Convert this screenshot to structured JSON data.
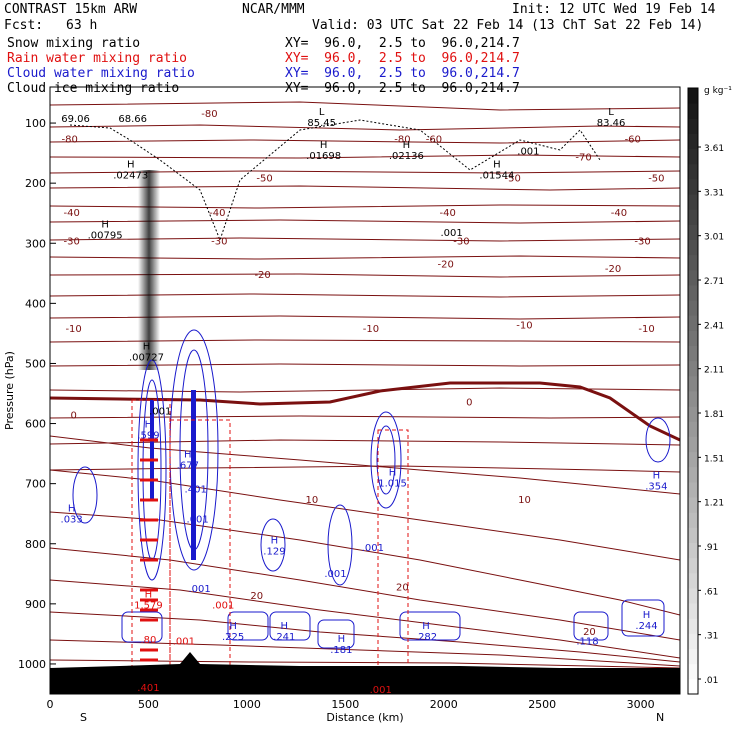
{
  "header": {
    "model": "CONTRAST 15km ARW",
    "org": "NCAR/MMM",
    "init": "Init: 12 UTC Wed 19 Feb 14",
    "fcst_label": "Fcst:",
    "fcst_value": "63 h",
    "valid": "Valid: 03 UTC Sat 22 Feb 14 (13 ChT Sat 22 Feb 14)",
    "fields": [
      {
        "name": "Snow mixing ratio",
        "color": "#000000",
        "xy": "XY=  96.0,  2.5 to  96.0,214.7"
      },
      {
        "name": "Rain water mixing ratio",
        "color": "#e01010",
        "xy": "XY=  96.0,  2.5 to  96.0,214.7"
      },
      {
        "name": "Cloud water mixing ratio",
        "color": "#1a1acc",
        "xy": "XY=  96.0,  2.5 to  96.0,214.7"
      },
      {
        "name": "Cloud ice mixing ratio",
        "color": "#000000",
        "xy": "XY=  96.0,  2.5 to  96.0,214.7"
      }
    ]
  },
  "chart_data": {
    "type": "cross-section",
    "xlabel": "Distance (km)",
    "ylabel": "Pressure (hPa)",
    "xlim": [
      0,
      3200
    ],
    "ylim": [
      1050,
      40
    ],
    "x_ticks": [
      0,
      500,
      1000,
      1500,
      2000,
      2500,
      3000
    ],
    "y_ticks": [
      100,
      200,
      300,
      400,
      500,
      600,
      700,
      800,
      900,
      1000
    ],
    "x_end_labels": {
      "left": "S",
      "right": "N"
    },
    "colorbar": {
      "unit": "g kg⁻¹",
      "ticks": [
        3.61,
        3.31,
        3.01,
        2.71,
        2.41,
        2.11,
        1.81,
        1.51,
        1.21,
        0.91,
        0.61,
        0.31,
        0.01
      ],
      "tick_labels": [
        "3.61",
        "3.31",
        "3.01",
        "2.71",
        "2.41",
        "2.11",
        "1.81",
        "1.51",
        "1.21",
        ".91",
        ".61",
        ".31",
        ".01"
      ]
    },
    "temperature_contours": {
      "color": "#7a1010",
      "labels": [
        {
          "x": 100,
          "p": 127,
          "t": "-80"
        },
        {
          "x": 810,
          "p": 85,
          "t": "-80"
        },
        {
          "x": 1790,
          "p": 127,
          "t": "-80"
        },
        {
          "x": 1950,
          "p": 127,
          "t": "-60"
        },
        {
          "x": 2960,
          "p": 127,
          "t": "-60"
        },
        {
          "x": 2710,
          "p": 157,
          "t": "-70"
        },
        {
          "x": 1090,
          "p": 192,
          "t": "-50"
        },
        {
          "x": 2350,
          "p": 192,
          "t": "-50"
        },
        {
          "x": 3080,
          "p": 192,
          "t": "-50"
        },
        {
          "x": 110,
          "p": 250,
          "t": "-40"
        },
        {
          "x": 850,
          "p": 250,
          "t": "-40"
        },
        {
          "x": 2020,
          "p": 250,
          "t": "-40"
        },
        {
          "x": 2890,
          "p": 250,
          "t": "-40"
        },
        {
          "x": 110,
          "p": 297,
          "t": "-30"
        },
        {
          "x": 860,
          "p": 297,
          "t": "-30"
        },
        {
          "x": 2090,
          "p": 297,
          "t": "-30"
        },
        {
          "x": 3010,
          "p": 297,
          "t": "-30"
        },
        {
          "x": 1080,
          "p": 353,
          "t": "-20"
        },
        {
          "x": 2010,
          "p": 335,
          "t": "-20"
        },
        {
          "x": 2860,
          "p": 343,
          "t": "-20"
        },
        {
          "x": 120,
          "p": 443,
          "t": "-10"
        },
        {
          "x": 1630,
          "p": 443,
          "t": "-10"
        },
        {
          "x": 2410,
          "p": 437,
          "t": "-10"
        },
        {
          "x": 3030,
          "p": 443,
          "t": "-10"
        },
        {
          "x": 120,
          "p": 587,
          "t": "0"
        },
        {
          "x": 2130,
          "p": 565,
          "t": "0"
        },
        {
          "x": 1330,
          "p": 727,
          "t": "10"
        },
        {
          "x": 2410,
          "p": 727,
          "t": "10"
        },
        {
          "x": 1790,
          "p": 873,
          "t": "20"
        },
        {
          "x": 1050,
          "p": 887,
          "t": "20"
        },
        {
          "x": 2740,
          "p": 947,
          "t": "20"
        }
      ]
    },
    "max_min_labels": [
      {
        "x": 130,
        "p": 93,
        "sym": "",
        "val": "69.06",
        "color": "black"
      },
      {
        "x": 420,
        "p": 93,
        "sym": "",
        "val": "68.66",
        "color": "black"
      },
      {
        "x": 1380,
        "p": 100,
        "sym": "L",
        "val": "85.45",
        "color": "black"
      },
      {
        "x": 2850,
        "p": 100,
        "sym": "L",
        "val": "83.46",
        "color": "black"
      },
      {
        "x": 1390,
        "p": 155,
        "sym": "H",
        "val": ".01698",
        "color": "black"
      },
      {
        "x": 1810,
        "p": 155,
        "sym": "H",
        "val": ".02136",
        "color": "black"
      },
      {
        "x": 2430,
        "p": 147,
        "sym": "",
        "val": ".001",
        "color": "black"
      },
      {
        "x": 410,
        "p": 187,
        "sym": "H",
        "val": ".02473",
        "color": "black"
      },
      {
        "x": 2270,
        "p": 187,
        "sym": "H",
        "val": ".01544",
        "color": "black"
      },
      {
        "x": 280,
        "p": 287,
        "sym": "H",
        "val": ".00795",
        "color": "black"
      },
      {
        "x": 2040,
        "p": 283,
        "sym": "",
        "val": ".001",
        "color": "black"
      },
      {
        "x": 490,
        "p": 490,
        "sym": "H",
        "val": ".00727",
        "color": "black"
      },
      {
        "x": 560,
        "p": 580,
        "sym": "",
        "val": ".001",
        "color": "black"
      },
      {
        "x": 500,
        "p": 620,
        "sym": "H",
        "val": ".599",
        "color": "blue"
      },
      {
        "x": 700,
        "p": 670,
        "sym": "H",
        "val": ".677",
        "color": "blue"
      },
      {
        "x": 740,
        "p": 710,
        "sym": "",
        "val": ".401",
        "color": "blue"
      },
      {
        "x": 750,
        "p": 760,
        "sym": "",
        "val": ".001",
        "color": "blue"
      },
      {
        "x": 1740,
        "p": 700,
        "sym": "H",
        "val": "1.015",
        "color": "blue"
      },
      {
        "x": 3080,
        "p": 705,
        "sym": "H",
        "val": ".354",
        "color": "blue"
      },
      {
        "x": 110,
        "p": 760,
        "sym": "H",
        "val": ".033",
        "color": "blue"
      },
      {
        "x": 1140,
        "p": 813,
        "sym": "H",
        "val": ".129",
        "color": "blue"
      },
      {
        "x": 1640,
        "p": 807,
        "sym": "",
        "val": ".001",
        "color": "blue"
      },
      {
        "x": 1450,
        "p": 850,
        "sym": "",
        "val": ".001",
        "color": "blue"
      },
      {
        "x": 760,
        "p": 875,
        "sym": "",
        "val": ".001",
        "color": "blue"
      },
      {
        "x": 500,
        "p": 903,
        "sym": "H",
        "val": "1.579",
        "color": "red"
      },
      {
        "x": 880,
        "p": 903,
        "sym": "",
        "val": ".001",
        "color": "red"
      },
      {
        "x": 680,
        "p": 963,
        "sym": "",
        "val": ".001",
        "color": "red"
      },
      {
        "x": 500,
        "p": 960,
        "sym": "",
        "val": ".80",
        "color": "red"
      },
      {
        "x": 930,
        "p": 955,
        "sym": "H",
        "val": ".225",
        "color": "blue"
      },
      {
        "x": 1190,
        "p": 955,
        "sym": "H",
        "val": ".241",
        "color": "blue"
      },
      {
        "x": 1480,
        "p": 977,
        "sym": "H",
        "val": ".181",
        "color": "blue"
      },
      {
        "x": 1910,
        "p": 955,
        "sym": "H",
        "val": ".282",
        "color": "blue"
      },
      {
        "x": 2730,
        "p": 963,
        "sym": "",
        "val": ".118",
        "color": "blue"
      },
      {
        "x": 3030,
        "p": 937,
        "sym": "H",
        "val": ".244",
        "color": "blue"
      },
      {
        "x": 500,
        "p": 1040,
        "sym": "",
        "val": ".401",
        "color": "red"
      },
      {
        "x": 1680,
        "p": 1043,
        "sym": "",
        "val": ".001",
        "color": "red"
      }
    ]
  }
}
